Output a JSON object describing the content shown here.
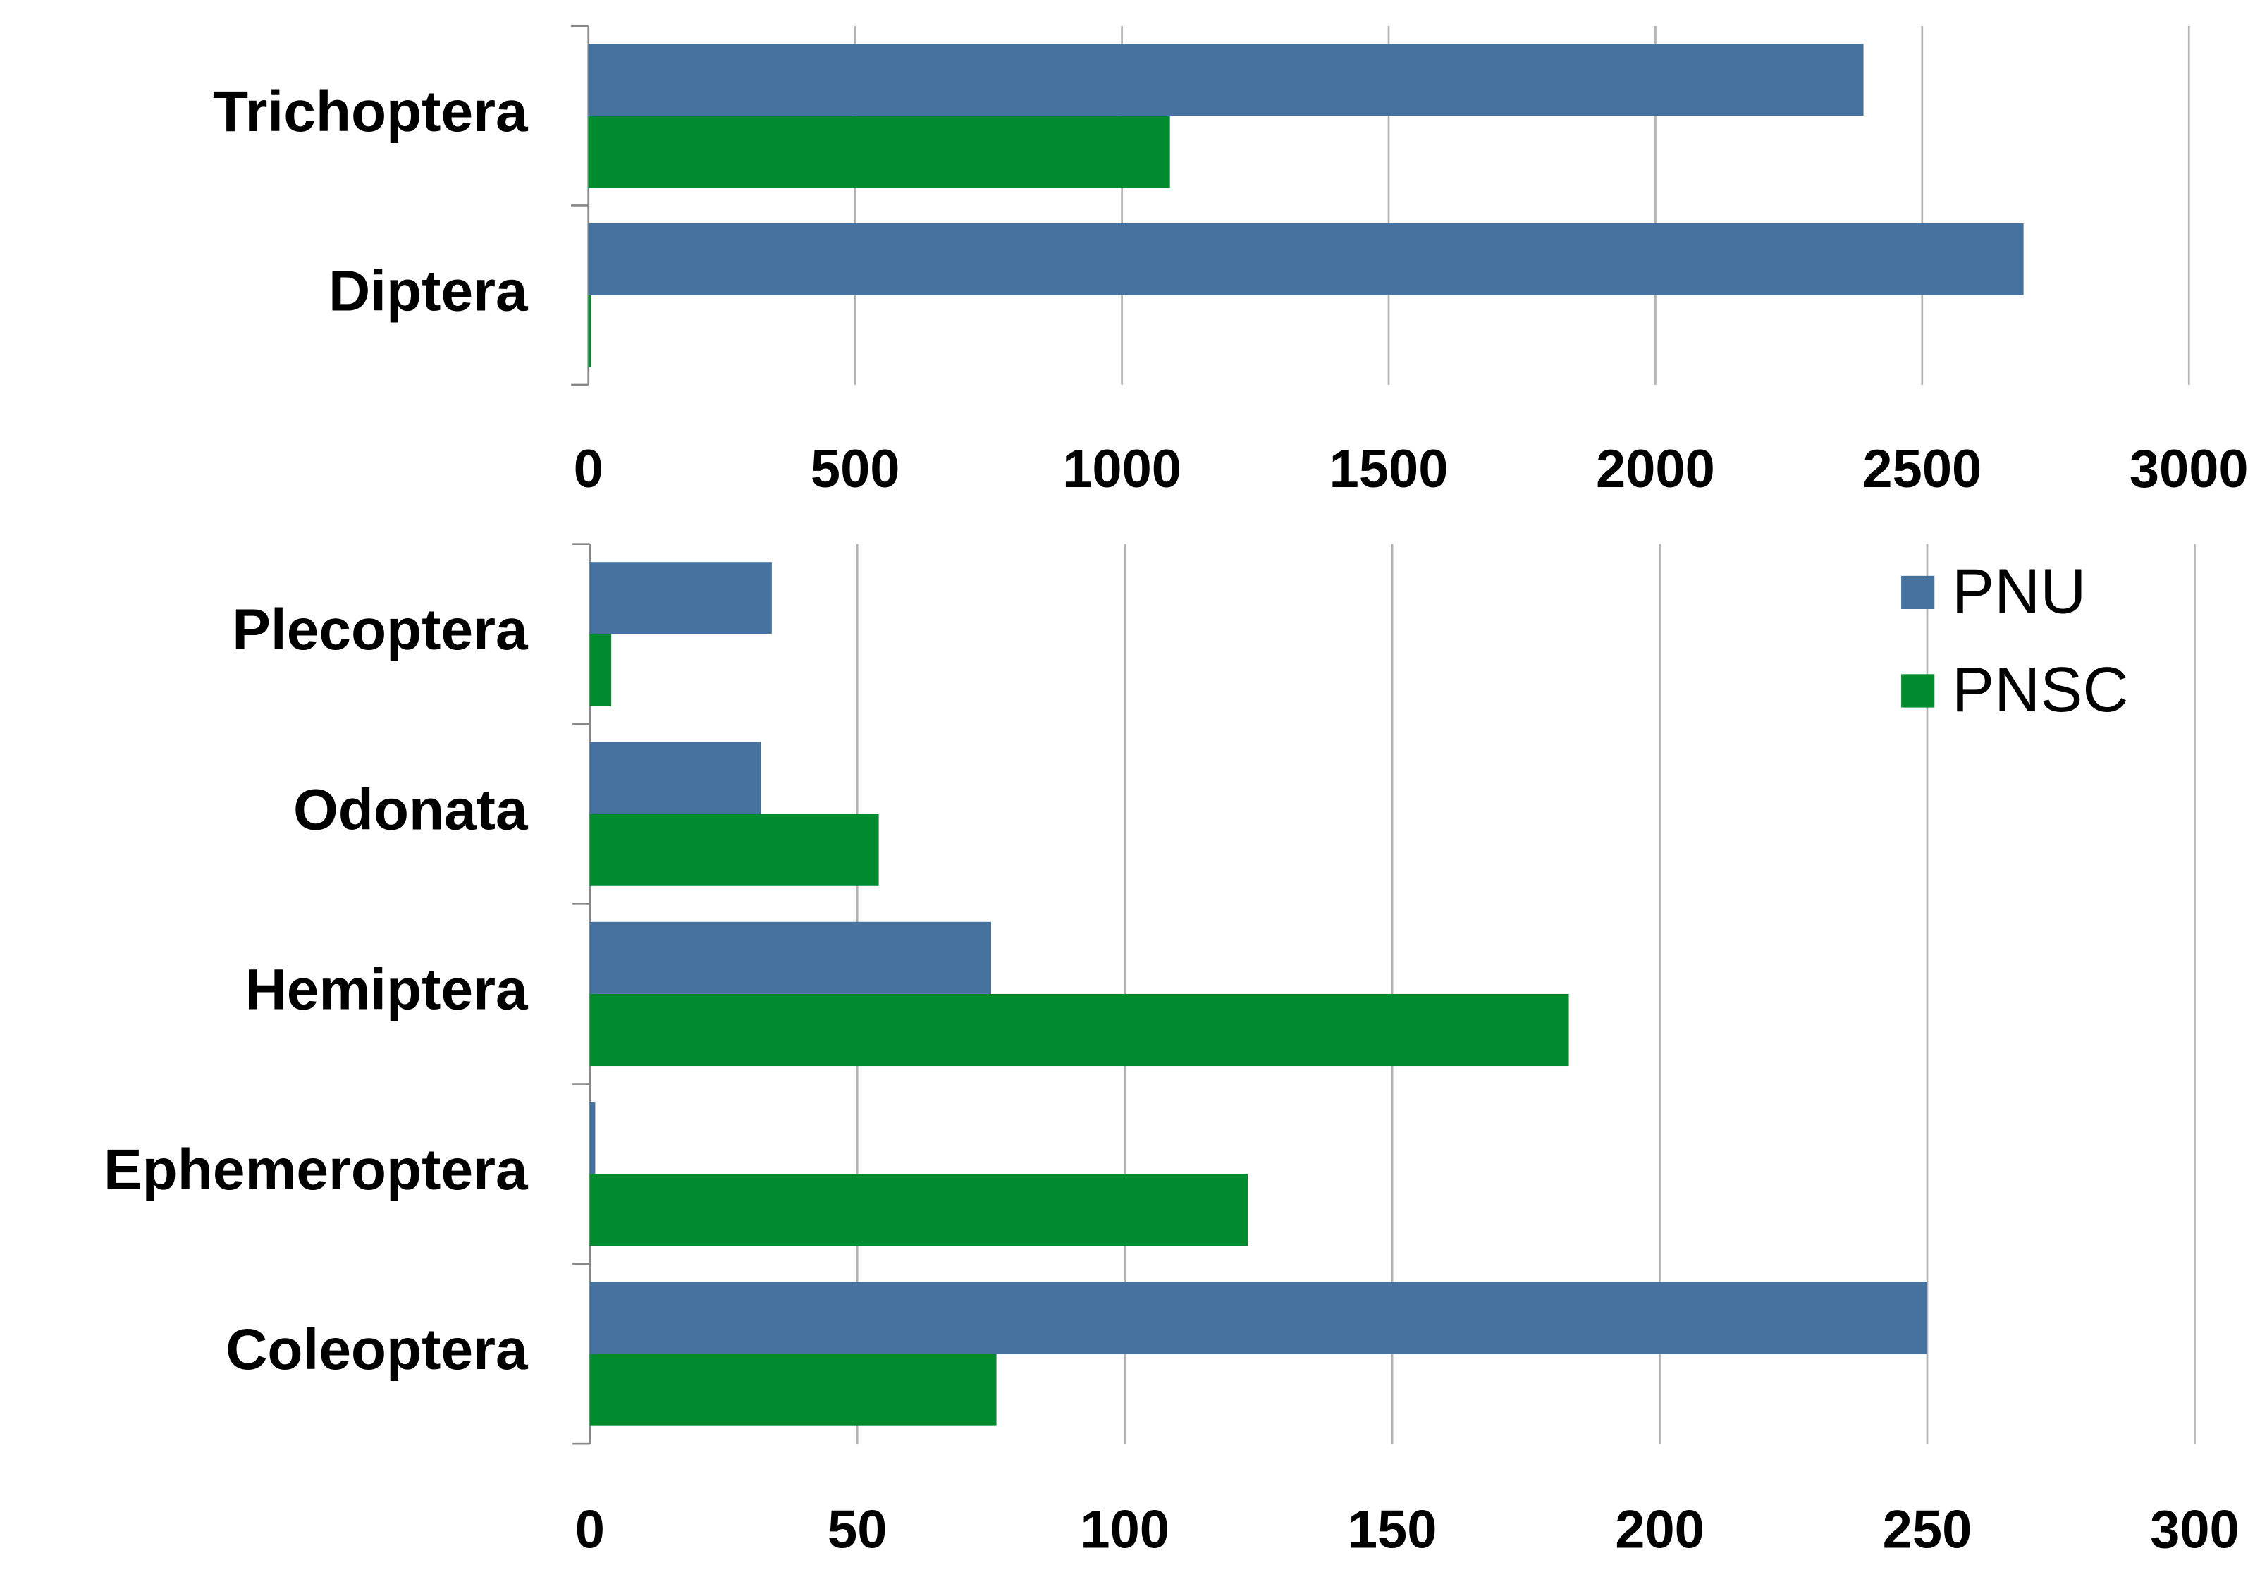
{
  "chart_data": [
    {
      "type": "bar",
      "orientation": "horizontal",
      "categories": [
        "Trichoptera",
        "Diptera"
      ],
      "series": [
        {
          "name": "PNU",
          "color": "#4672a0",
          "values": [
            2390,
            2690
          ]
        },
        {
          "name": "PNSC",
          "color": "#008c2e",
          "values": [
            1090,
            5
          ]
        }
      ],
      "xlim": [
        0,
        3000
      ],
      "xticks": [
        0,
        500,
        1000,
        1500,
        2000,
        2500,
        3000
      ],
      "grid": true,
      "legend": false
    },
    {
      "type": "bar",
      "orientation": "horizontal",
      "categories": [
        "Plecoptera",
        "Odonata",
        "Hemiptera",
        "Ephemeroptera",
        "Coleoptera"
      ],
      "series": [
        {
          "name": "PNU",
          "color": "#4672a0",
          "values": [
            34,
            32,
            75,
            1,
            250
          ]
        },
        {
          "name": "PNSC",
          "color": "#008c2e",
          "values": [
            4,
            54,
            183,
            123,
            76
          ]
        }
      ],
      "xlim": [
        0,
        300
      ],
      "xticks": [
        0,
        50,
        100,
        150,
        200,
        250,
        300
      ],
      "grid": true,
      "legend": "upper right"
    }
  ]
}
